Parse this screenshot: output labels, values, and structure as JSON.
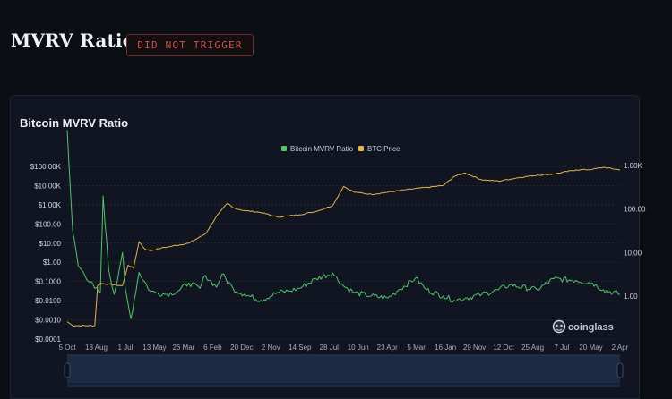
{
  "header": {
    "title": "MVRV Ratio",
    "status_badge": "DID NOT TRIGGER"
  },
  "card": {
    "title": "Bitcoin MVRV Ratio",
    "watermark": "coinglass"
  },
  "colors": {
    "mvrv": "#57c26a",
    "btc_price": "#e0b24e",
    "badge_text": "#c5574d",
    "badge_border": "#6b2e2a",
    "background": "#0b0e14",
    "card": "#111521"
  },
  "chart_data": {
    "type": "line",
    "title": "Bitcoin MVRV Ratio",
    "legend": [
      "Bitcoin MVRV Ratio",
      "BTC Price"
    ],
    "legend_position": "top-center",
    "grid": "horizontal-dotted",
    "x_tick_labels": [
      "5 Oct",
      "18 Aug",
      "1 Jul",
      "13 May",
      "26 Mar",
      "6 Feb",
      "20 Dec",
      "2 Nov",
      "14 Sep",
      "28 Jul",
      "10 Jun",
      "23 Apr",
      "5 Mar",
      "16 Jan",
      "29 Nov",
      "12 Oct",
      "25 Aug",
      "7 Jul",
      "20 May",
      "2 Apr"
    ],
    "y_left": {
      "scale": "log",
      "range": [
        0.0001,
        100000
      ],
      "tick_labels": [
        "$100.00K",
        "$10.00K",
        "$1.00K",
        "$100.00",
        "$10.00",
        "$1.00",
        "$0.1000",
        "$0.0100",
        "$0.0010",
        "$0.0001"
      ]
    },
    "y_right": {
      "scale": "log",
      "tick_labels": [
        "1.00K",
        "100.00",
        "10.00",
        "1.00"
      ]
    },
    "series": [
      {
        "name": "BTC Price",
        "axis": "left",
        "x": [
          0,
          0.01,
          0.015,
          0.05,
          0.055,
          0.06,
          0.1,
          0.11,
          0.12,
          0.13,
          0.14,
          0.15,
          0.17,
          0.19,
          0.22,
          0.25,
          0.27,
          0.29,
          0.3,
          0.32,
          0.35,
          0.38,
          0.4,
          0.42,
          0.45,
          0.48,
          0.5,
          0.52,
          0.55,
          0.58,
          0.61,
          0.65,
          0.68,
          0.7,
          0.72,
          0.75,
          0.78,
          0.82,
          0.85,
          0.88,
          0.92,
          0.95,
          0.97,
          1.0
        ],
        "values": [
          0.0008,
          0.0005,
          0.0005,
          0.0005,
          0.06,
          0.08,
          0.06,
          0.7,
          0.5,
          12,
          5,
          4,
          5.5,
          7,
          10,
          30,
          250,
          1200,
          700,
          500,
          400,
          230,
          260,
          300,
          450,
          900,
          9000,
          4500,
          3500,
          4500,
          6000,
          8000,
          10000,
          30000,
          45000,
          20000,
          17000,
          27000,
          35000,
          40000,
          65000,
          70000,
          90000,
          65000
        ]
      },
      {
        "name": "Bitcoin MVRV Ratio",
        "axis": "right",
        "x": [
          0,
          0.01,
          0.02,
          0.05,
          0.06,
          0.065,
          0.075,
          0.085,
          0.1,
          0.105,
          0.115,
          0.13,
          0.15,
          0.16,
          0.18,
          0.2,
          0.22,
          0.24,
          0.25,
          0.27,
          0.28,
          0.3,
          0.32,
          0.35,
          0.38,
          0.4,
          0.42,
          0.45,
          0.48,
          0.5,
          0.52,
          0.55,
          0.58,
          0.6,
          0.63,
          0.65,
          0.68,
          0.7,
          0.72,
          0.75,
          0.78,
          0.8,
          0.85,
          0.88,
          0.92,
          0.95,
          0.97,
          1.0
        ],
        "values": [
          6500,
          30,
          5,
          1.5,
          1.2,
          200,
          4,
          1.1,
          10,
          1.5,
          0.3,
          3.5,
          1.3,
          1.2,
          1.1,
          1.3,
          2,
          1.5,
          3,
          1.6,
          3.2,
          1.5,
          1.1,
          0.8,
          1.2,
          1.3,
          1.5,
          2.5,
          3.4,
          1.7,
          1.2,
          1.0,
          0.9,
          1.4,
          2.6,
          1.4,
          1.0,
          0.8,
          0.9,
          1.1,
          1.4,
          1.8,
          1.4,
          2.5,
          2.3,
          2.0,
          1.4,
          1.1
        ]
      }
    ]
  }
}
